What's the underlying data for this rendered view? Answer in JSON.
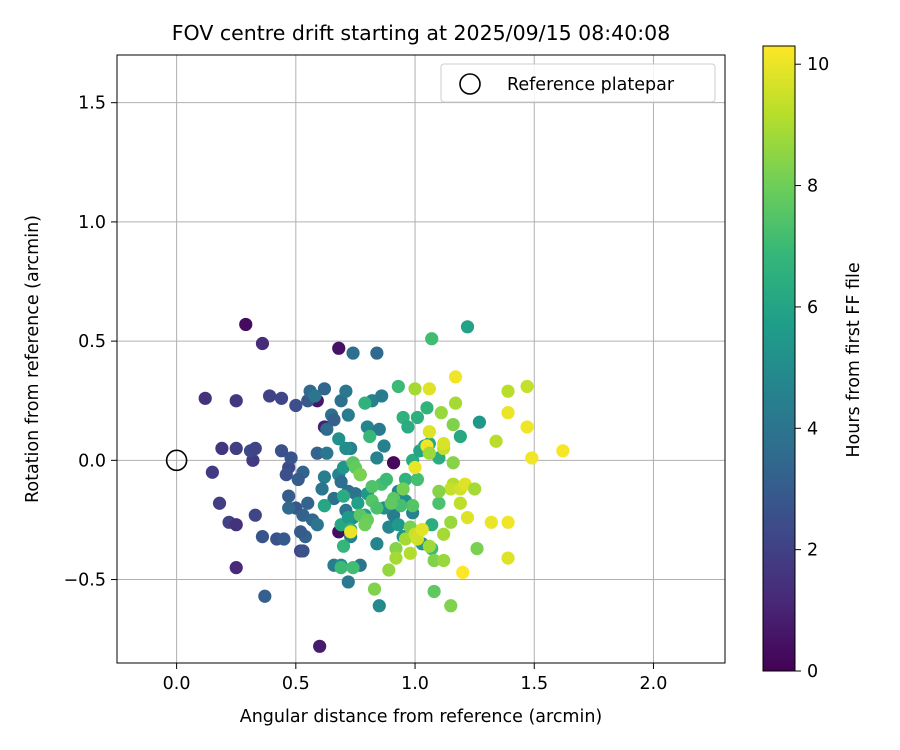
{
  "chart_data": {
    "type": "scatter",
    "title": "FOV centre drift starting at 2025/09/15 08:40:08",
    "xlabel": "Angular distance from reference (arcmin)",
    "ylabel": "Rotation from reference (arcmin)",
    "xlim": [
      -0.25,
      2.3
    ],
    "ylim": [
      -0.85,
      1.7
    ],
    "xticks": [
      0.0,
      0.5,
      1.0,
      1.5,
      2.0
    ],
    "xtick_labels": [
      "0.0",
      "0.5",
      "1.0",
      "1.5",
      "2.0"
    ],
    "yticks": [
      -0.5,
      0.0,
      0.5,
      1.0,
      1.5
    ],
    "ytick_labels": [
      "−0.5",
      "0.0",
      "0.5",
      "1.0",
      "1.5"
    ],
    "grid": true,
    "legend": {
      "position": "top-right",
      "entries": [
        {
          "label": "Reference platepar",
          "marker": "open-circle"
        }
      ]
    },
    "reference_point": {
      "x": 0.0,
      "y": 0.0
    },
    "colorbar": {
      "label": "Hours from first FF file",
      "min": 0,
      "max": 10.3,
      "ticks": [
        0,
        2,
        4,
        6,
        8,
        10
      ],
      "tick_labels": [
        "0",
        "2",
        "4",
        "6",
        "8",
        "10"
      ],
      "colormap": "viridis"
    },
    "colormap_stops": [
      "#440154",
      "#482878",
      "#3e4989",
      "#31688e",
      "#26828e",
      "#1f9e89",
      "#35b779",
      "#6ece58",
      "#b5de2b",
      "#fde725"
    ],
    "points_columns": [
      "x",
      "y",
      "hours"
    ],
    "points": [
      [
        0.29,
        0.57,
        0.3
      ],
      [
        0.68,
        0.47,
        0.5
      ],
      [
        0.6,
        -0.78,
        0.8
      ],
      [
        0.91,
        -0.01,
        0.2
      ],
      [
        0.59,
        0.25,
        0.6
      ],
      [
        0.68,
        -0.3,
        0.4
      ],
      [
        0.62,
        0.14,
        0.9
      ],
      [
        0.36,
        0.49,
        1.3
      ],
      [
        0.12,
        0.26,
        1.5
      ],
      [
        0.25,
        0.25,
        1.7
      ],
      [
        0.15,
        -0.05,
        1.8
      ],
      [
        0.19,
        0.05,
        1.6
      ],
      [
        0.18,
        -0.18,
        1.9
      ],
      [
        0.22,
        -0.26,
        2.0
      ],
      [
        0.25,
        -0.27,
        1.5
      ],
      [
        0.25,
        -0.45,
        1.2
      ],
      [
        0.25,
        0.05,
        1.9
      ],
      [
        0.32,
        0.0,
        1.8
      ],
      [
        0.31,
        0.04,
        2.3
      ],
      [
        0.33,
        0.05,
        2.1
      ],
      [
        0.33,
        -0.23,
        2.2
      ],
      [
        0.36,
        -0.32,
        2.7
      ],
      [
        0.37,
        -0.57,
        3.1
      ],
      [
        0.39,
        0.27,
        2.0
      ],
      [
        0.44,
        0.26,
        2.2
      ],
      [
        0.44,
        0.04,
        2.6
      ],
      [
        0.42,
        -0.33,
        2.6
      ],
      [
        0.45,
        -0.33,
        2.9
      ],
      [
        0.47,
        -0.03,
        2.3
      ],
      [
        0.46,
        -0.06,
        2.5
      ],
      [
        0.48,
        0.01,
        2.7
      ],
      [
        0.5,
        0.23,
        2.5
      ],
      [
        0.52,
        -0.38,
        2.1
      ],
      [
        0.53,
        -0.38,
        2.6
      ],
      [
        0.55,
        0.25,
        2.9
      ],
      [
        0.53,
        -0.05,
        3.3
      ],
      [
        0.51,
        -0.08,
        3.0
      ],
      [
        0.47,
        -0.15,
        3.0
      ],
      [
        0.5,
        -0.2,
        2.8
      ],
      [
        0.53,
        -0.23,
        3.2
      ],
      [
        0.57,
        -0.25,
        3.4
      ],
      [
        0.54,
        -0.32,
        3.2
      ],
      [
        0.52,
        -0.3,
        3.0
      ],
      [
        0.55,
        -0.18,
        3.3
      ],
      [
        0.47,
        -0.2,
        3.5
      ],
      [
        0.56,
        0.29,
        3.5
      ],
      [
        0.58,
        0.27,
        4.0
      ],
      [
        0.62,
        0.3,
        3.4
      ],
      [
        0.63,
        0.13,
        3.6
      ],
      [
        0.59,
        0.03,
        3.3
      ],
      [
        0.65,
        0.19,
        3.8
      ],
      [
        0.66,
        0.17,
        3.1
      ],
      [
        0.69,
        0.25,
        3.8
      ],
      [
        0.71,
        0.29,
        4.1
      ],
      [
        0.72,
        0.19,
        4.3
      ],
      [
        0.74,
        0.45,
        3.8
      ],
      [
        0.84,
        0.45,
        3.5
      ],
      [
        0.82,
        0.25,
        4.5
      ],
      [
        0.86,
        0.27,
        4.3
      ],
      [
        0.8,
        0.14,
        4.7
      ],
      [
        0.85,
        0.13,
        4.2
      ],
      [
        0.87,
        0.06,
        4.5
      ],
      [
        0.84,
        0.01,
        4.6
      ],
      [
        0.63,
        0.03,
        4.1
      ],
      [
        0.62,
        -0.07,
        4.4
      ],
      [
        0.68,
        -0.06,
        4.6
      ],
      [
        0.69,
        -0.09,
        3.7
      ],
      [
        0.61,
        -0.12,
        4.0
      ],
      [
        0.66,
        -0.16,
        3.8
      ],
      [
        0.72,
        -0.13,
        3.7
      ],
      [
        0.75,
        -0.14,
        3.9
      ],
      [
        0.71,
        -0.21,
        4.0
      ],
      [
        0.62,
        -0.19,
        4.9
      ],
      [
        0.59,
        -0.27,
        4.0
      ],
      [
        0.66,
        -0.44,
        4.3
      ],
      [
        0.69,
        -0.44,
        5.0
      ],
      [
        0.72,
        -0.51,
        4.2
      ],
      [
        0.77,
        -0.44,
        4.0
      ],
      [
        0.73,
        -0.32,
        4.5
      ],
      [
        0.73,
        0.05,
        4.5
      ],
      [
        0.71,
        0.05,
        5.0
      ],
      [
        0.68,
        0.09,
        5.2
      ],
      [
        0.7,
        -0.03,
        5.4
      ],
      [
        0.74,
        -0.24,
        4.9
      ],
      [
        0.84,
        -0.35,
        4.7
      ],
      [
        0.85,
        -0.61,
        4.9
      ],
      [
        0.89,
        -0.28,
        4.8
      ],
      [
        0.93,
        -0.13,
        4.7
      ],
      [
        0.91,
        -0.23,
        4.3
      ],
      [
        0.96,
        -0.17,
        5.1
      ],
      [
        0.99,
        -0.22,
        4.6
      ],
      [
        0.87,
        -0.2,
        5.0
      ],
      [
        0.93,
        -0.27,
        5.5
      ],
      [
        0.95,
        -0.32,
        5.3
      ],
      [
        0.8,
        -0.14,
        5.5
      ],
      [
        0.76,
        -0.18,
        5.8
      ],
      [
        0.77,
        -0.06,
        6.2
      ],
      [
        0.79,
        -0.23,
        5.8
      ],
      [
        0.69,
        -0.27,
        6.2
      ],
      [
        0.62,
        -0.19,
        6.1
      ],
      [
        0.7,
        -0.15,
        6.3
      ],
      [
        0.72,
        -0.24,
        5.6
      ],
      [
        0.73,
        -0.29,
        6.6
      ],
      [
        0.7,
        -0.36,
        6.8
      ],
      [
        0.69,
        -0.45,
        7.0
      ],
      [
        0.74,
        -0.45,
        7.1
      ],
      [
        0.79,
        0.24,
        6.6
      ],
      [
        0.81,
        0.1,
        6.9
      ],
      [
        0.95,
        0.18,
        6.6
      ],
      [
        0.97,
        0.14,
        6.3
      ],
      [
        0.93,
        0.31,
        7.0
      ],
      [
        1.01,
        0.18,
        6.5
      ],
      [
        1.04,
        0.06,
        5.9
      ],
      [
        1.06,
        0.07,
        6.1
      ],
      [
        1.05,
        0.22,
        6.7
      ],
      [
        1.07,
        0.51,
        7.1
      ],
      [
        1.22,
        0.56,
        5.9
      ],
      [
        1.27,
        0.16,
        5.4
      ],
      [
        1.19,
        0.1,
        6.2
      ],
      [
        1.1,
        0.01,
        6.3
      ],
      [
        0.99,
        0.0,
        6.3
      ],
      [
        1.02,
        0.04,
        6.0
      ],
      [
        0.96,
        -0.08,
        6.6
      ],
      [
        1.01,
        -0.08,
        7.2
      ],
      [
        0.91,
        -0.16,
        7.6
      ],
      [
        1.03,
        -0.35,
        5.4
      ],
      [
        1.07,
        -0.27,
        6.4
      ],
      [
        1.1,
        -0.18,
        7.3
      ],
      [
        1.07,
        -0.37,
        7.0
      ],
      [
        1.08,
        -0.55,
        7.7
      ],
      [
        1.15,
        -0.61,
        8.3
      ],
      [
        1.26,
        -0.37,
        8.2
      ],
      [
        0.99,
        -0.19,
        7.5
      ],
      [
        0.94,
        -0.19,
        7.2
      ],
      [
        0.9,
        -0.18,
        7.7
      ],
      [
        0.86,
        -0.1,
        7.2
      ],
      [
        0.88,
        -0.08,
        7.0
      ],
      [
        0.82,
        -0.17,
        7.5
      ],
      [
        0.82,
        -0.11,
        7.4
      ],
      [
        0.84,
        -0.2,
        7.3
      ],
      [
        0.77,
        -0.23,
        7.6
      ],
      [
        0.8,
        -0.25,
        7.9
      ],
      [
        0.74,
        -0.01,
        7.6
      ],
      [
        0.75,
        -0.03,
        7.8
      ],
      [
        0.79,
        -0.27,
        8.0
      ],
      [
        0.83,
        -0.54,
        8.3
      ],
      [
        0.89,
        -0.46,
        8.6
      ],
      [
        0.92,
        -0.37,
        8.4
      ],
      [
        0.92,
        -0.41,
        8.9
      ],
      [
        0.98,
        -0.39,
        9.1
      ],
      [
        0.96,
        -0.33,
        8.9
      ],
      [
        0.98,
        -0.28,
        8.2
      ],
      [
        1.0,
        -0.31,
        9.5
      ],
      [
        1.01,
        -0.33,
        9.6
      ],
      [
        1.03,
        -0.29,
        9.9
      ],
      [
        1.06,
        -0.36,
        8.8
      ],
      [
        1.08,
        -0.42,
        8.3
      ],
      [
        1.12,
        -0.42,
        8.7
      ],
      [
        1.12,
        -0.31,
        8.9
      ],
      [
        1.15,
        -0.26,
        8.7
      ],
      [
        1.16,
        -0.1,
        9.1
      ],
      [
        1.15,
        -0.12,
        9.4
      ],
      [
        1.19,
        -0.12,
        9.6
      ],
      [
        1.21,
        -0.1,
        9.8
      ],
      [
        1.19,
        -0.18,
        9.3
      ],
      [
        1.22,
        -0.24,
        9.8
      ],
      [
        1.25,
        -0.12,
        8.9
      ],
      [
        1.2,
        -0.47,
        10.3
      ],
      [
        1.1,
        -0.13,
        8.4
      ],
      [
        1.0,
        0.3,
        8.9
      ],
      [
        1.06,
        0.3,
        9.8
      ],
      [
        1.11,
        0.2,
        8.7
      ],
      [
        1.16,
        0.15,
        8.3
      ],
      [
        1.17,
        0.24,
        8.9
      ],
      [
        1.17,
        0.35,
        10.1
      ],
      [
        1.12,
        0.05,
        9.4
      ],
      [
        1.12,
        0.07,
        9.7
      ],
      [
        1.06,
        0.12,
        9.8
      ],
      [
        1.05,
        0.06,
        10.1
      ],
      [
        1.06,
        0.03,
        8.8
      ],
      [
        1.0,
        -0.03,
        10.0
      ],
      [
        1.16,
        -0.01,
        8.4
      ],
      [
        1.34,
        0.08,
        9.2
      ],
      [
        1.39,
        0.2,
        10.0
      ],
      [
        1.39,
        0.29,
        9.2
      ],
      [
        1.47,
        0.31,
        9.4
      ],
      [
        1.47,
        0.14,
        10.1
      ],
      [
        1.49,
        0.01,
        10.1
      ],
      [
        1.62,
        0.04,
        10.2
      ],
      [
        1.32,
        -0.26,
        10.0
      ],
      [
        1.39,
        -0.26,
        10.1
      ],
      [
        1.39,
        -0.41,
        9.8
      ],
      [
        0.73,
        -0.3,
        10.0
      ],
      [
        0.77,
        -0.06,
        8.2
      ],
      [
        0.95,
        -0.12,
        8.1
      ]
    ]
  }
}
